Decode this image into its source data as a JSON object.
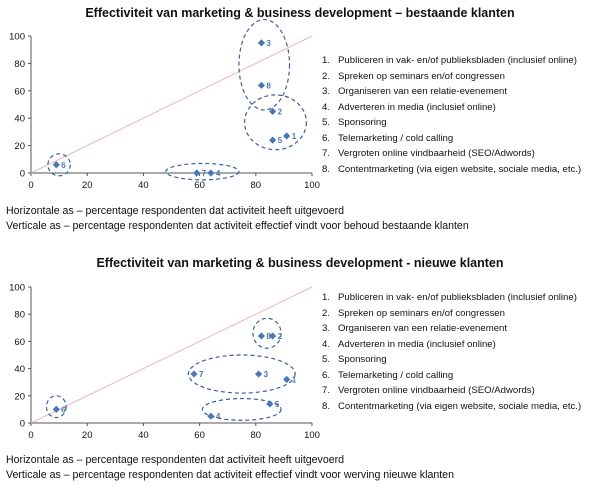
{
  "colors": {
    "marker": "#4a76b8",
    "diagonal": "#e8b8c0",
    "ellipse": "#3b5f9a",
    "axis": "#555555"
  },
  "chart_data": [
    {
      "type": "scatter",
      "title": "Effectiviteit van marketing & business development – bestaande klanten",
      "xlim": [
        0,
        100
      ],
      "ylim": [
        0,
        100
      ],
      "xticks": [
        0,
        20,
        40,
        60,
        80,
        100
      ],
      "yticks": [
        0,
        20,
        40,
        60,
        80,
        100
      ],
      "diagonal": true,
      "points": [
        {
          "label": "3",
          "x": 82,
          "y": 95
        },
        {
          "label": "8",
          "x": 82,
          "y": 64
        },
        {
          "label": "2",
          "x": 86,
          "y": 45
        },
        {
          "label": "1",
          "x": 91,
          "y": 27
        },
        {
          "label": "5",
          "x": 86,
          "y": 24
        },
        {
          "label": "6",
          "x": 9,
          "y": 6
        },
        {
          "label": "7",
          "x": 59,
          "y": 0
        },
        {
          "label": "4",
          "x": 64,
          "y": 0
        }
      ],
      "groups": [
        {
          "cx": 83,
          "cy": 79,
          "rx": 9,
          "ry": 33
        },
        {
          "cx": 87,
          "cy": 37,
          "rx": 11,
          "ry": 20
        },
        {
          "cx": 10,
          "cy": 6,
          "rx": 4,
          "ry": 8
        },
        {
          "cx": 61,
          "cy": 1,
          "rx": 13,
          "ry": 6
        }
      ],
      "legend": [
        {
          "num": "1.",
          "text": "Publiceren in vak- en/of publieksbladen (inclusief online)"
        },
        {
          "num": "2.",
          "text": "Spreken op seminars en/of congressen"
        },
        {
          "num": "3.",
          "text": "Organiseren van een relatie-evenement"
        },
        {
          "num": "4.",
          "text": "Adverteren in media (inclusief online)"
        },
        {
          "num": "5.",
          "text": "Sponsoring"
        },
        {
          "num": "6.",
          "text": "Telemarketing / cold calling"
        },
        {
          "num": "7.",
          "text": "Vergroten online vindbaarheid (SEO/Adwords)"
        },
        {
          "num": "8.",
          "text": "Contentmarketing (via eigen website, sociale media, etc.)"
        }
      ],
      "xlabel": "Horizontale as – percentage respondenten dat activiteit heeft uitgevoerd",
      "ylabel": "Verticale as – percentage respondenten dat activiteit effectief vindt voor behoud bestaande klanten"
    },
    {
      "type": "scatter",
      "title": "Effectiviteit van marketing & business development - nieuwe klanten",
      "xlim": [
        0,
        100
      ],
      "ylim": [
        0,
        100
      ],
      "xticks": [
        0,
        20,
        40,
        60,
        80,
        100
      ],
      "yticks": [
        0,
        20,
        40,
        60,
        80,
        100
      ],
      "diagonal": true,
      "points": [
        {
          "label": "8",
          "x": 82,
          "y": 64
        },
        {
          "label": "2",
          "x": 86,
          "y": 64
        },
        {
          "label": "7",
          "x": 58,
          "y": 36
        },
        {
          "label": "3",
          "x": 81,
          "y": 36
        },
        {
          "label": "1",
          "x": 91,
          "y": 32
        },
        {
          "label": "5",
          "x": 85,
          "y": 14
        },
        {
          "label": "4",
          "x": 64,
          "y": 5
        },
        {
          "label": "6",
          "x": 9,
          "y": 10
        }
      ],
      "groups": [
        {
          "cx": 84,
          "cy": 66,
          "rx": 5,
          "ry": 11
        },
        {
          "cx": 75,
          "cy": 36,
          "rx": 19,
          "ry": 14
        },
        {
          "cx": 75,
          "cy": 10,
          "rx": 14,
          "ry": 8
        },
        {
          "cx": 9,
          "cy": 12,
          "rx": 3.5,
          "ry": 8
        }
      ],
      "legend": [
        {
          "num": "1.",
          "text": "Publiceren in vak- en/of publieksbladen (inclusief online)"
        },
        {
          "num": "2.",
          "text": "Spreken op seminars en/of congressen"
        },
        {
          "num": "3.",
          "text": "Organiseren van een relatie-evenement"
        },
        {
          "num": "4.",
          "text": "Adverteren in media (inclusief online)"
        },
        {
          "num": "5.",
          "text": "Sponsoring"
        },
        {
          "num": "6.",
          "text": "Telemarketing / cold calling"
        },
        {
          "num": "7.",
          "text": "Vergroten online vindbaarheid (SEO/Adwords)"
        },
        {
          "num": "8.",
          "text": "Contentmarketing (via eigen website, sociale media, etc.)"
        }
      ],
      "xlabel": "Horizontale as – percentage respondenten dat activiteit heeft uitgevoerd",
      "ylabel": "Verticale as – percentage respondenten dat activiteit effectief vindt voor werving nieuwe klanten"
    }
  ]
}
